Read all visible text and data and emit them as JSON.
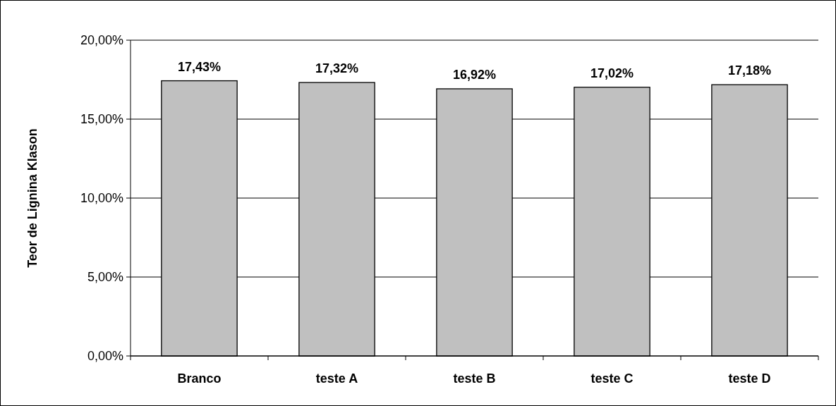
{
  "chart_data": {
    "type": "bar",
    "ylabel": "Teor de Lignina Klason",
    "categories": [
      "Branco",
      "teste A",
      "teste B",
      "teste C",
      "teste D"
    ],
    "values": [
      17.43,
      17.32,
      16.92,
      17.02,
      17.18
    ],
    "value_labels": [
      "17,43%",
      "17,32%",
      "16,92%",
      "17,02%",
      "17,18%"
    ],
    "color": "#c0c0c0",
    "ylim": [
      0,
      20
    ],
    "yticks": [
      {
        "value": 0,
        "label": "0,00%"
      },
      {
        "value": 5,
        "label": "5,00%"
      },
      {
        "value": 10,
        "label": "10,00%"
      },
      {
        "value": 15,
        "label": "15,00%"
      },
      {
        "value": 20,
        "label": "20,00%"
      }
    ],
    "grid": "y"
  }
}
